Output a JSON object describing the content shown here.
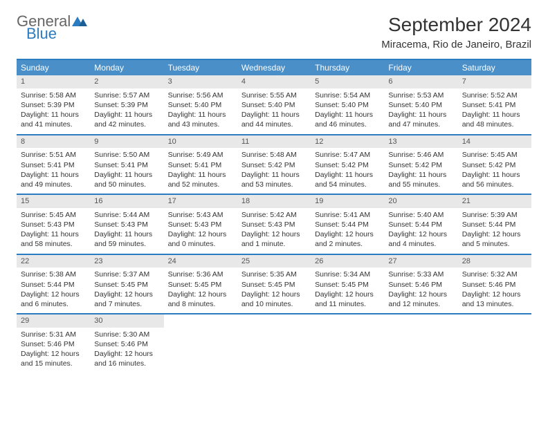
{
  "logo": {
    "general": "General",
    "blue": "Blue"
  },
  "title": "September 2024",
  "location": "Miracema, Rio de Janeiro, Brazil",
  "colors": {
    "header_bar": "#4a8fc8",
    "rule": "#2a7bbf",
    "daynum_bg": "#e8e8e8",
    "text": "#333333",
    "logo_gray": "#666666",
    "logo_blue": "#2a7bbf"
  },
  "dow": [
    "Sunday",
    "Monday",
    "Tuesday",
    "Wednesday",
    "Thursday",
    "Friday",
    "Saturday"
  ],
  "weeks": [
    [
      {
        "n": "1",
        "sr": "Sunrise: 5:58 AM",
        "ss": "Sunset: 5:39 PM",
        "d1": "Daylight: 11 hours",
        "d2": "and 41 minutes."
      },
      {
        "n": "2",
        "sr": "Sunrise: 5:57 AM",
        "ss": "Sunset: 5:39 PM",
        "d1": "Daylight: 11 hours",
        "d2": "and 42 minutes."
      },
      {
        "n": "3",
        "sr": "Sunrise: 5:56 AM",
        "ss": "Sunset: 5:40 PM",
        "d1": "Daylight: 11 hours",
        "d2": "and 43 minutes."
      },
      {
        "n": "4",
        "sr": "Sunrise: 5:55 AM",
        "ss": "Sunset: 5:40 PM",
        "d1": "Daylight: 11 hours",
        "d2": "and 44 minutes."
      },
      {
        "n": "5",
        "sr": "Sunrise: 5:54 AM",
        "ss": "Sunset: 5:40 PM",
        "d1": "Daylight: 11 hours",
        "d2": "and 46 minutes."
      },
      {
        "n": "6",
        "sr": "Sunrise: 5:53 AM",
        "ss": "Sunset: 5:40 PM",
        "d1": "Daylight: 11 hours",
        "d2": "and 47 minutes."
      },
      {
        "n": "7",
        "sr": "Sunrise: 5:52 AM",
        "ss": "Sunset: 5:41 PM",
        "d1": "Daylight: 11 hours",
        "d2": "and 48 minutes."
      }
    ],
    [
      {
        "n": "8",
        "sr": "Sunrise: 5:51 AM",
        "ss": "Sunset: 5:41 PM",
        "d1": "Daylight: 11 hours",
        "d2": "and 49 minutes."
      },
      {
        "n": "9",
        "sr": "Sunrise: 5:50 AM",
        "ss": "Sunset: 5:41 PM",
        "d1": "Daylight: 11 hours",
        "d2": "and 50 minutes."
      },
      {
        "n": "10",
        "sr": "Sunrise: 5:49 AM",
        "ss": "Sunset: 5:41 PM",
        "d1": "Daylight: 11 hours",
        "d2": "and 52 minutes."
      },
      {
        "n": "11",
        "sr": "Sunrise: 5:48 AM",
        "ss": "Sunset: 5:42 PM",
        "d1": "Daylight: 11 hours",
        "d2": "and 53 minutes."
      },
      {
        "n": "12",
        "sr": "Sunrise: 5:47 AM",
        "ss": "Sunset: 5:42 PM",
        "d1": "Daylight: 11 hours",
        "d2": "and 54 minutes."
      },
      {
        "n": "13",
        "sr": "Sunrise: 5:46 AM",
        "ss": "Sunset: 5:42 PM",
        "d1": "Daylight: 11 hours",
        "d2": "and 55 minutes."
      },
      {
        "n": "14",
        "sr": "Sunrise: 5:45 AM",
        "ss": "Sunset: 5:42 PM",
        "d1": "Daylight: 11 hours",
        "d2": "and 56 minutes."
      }
    ],
    [
      {
        "n": "15",
        "sr": "Sunrise: 5:45 AM",
        "ss": "Sunset: 5:43 PM",
        "d1": "Daylight: 11 hours",
        "d2": "and 58 minutes."
      },
      {
        "n": "16",
        "sr": "Sunrise: 5:44 AM",
        "ss": "Sunset: 5:43 PM",
        "d1": "Daylight: 11 hours",
        "d2": "and 59 minutes."
      },
      {
        "n": "17",
        "sr": "Sunrise: 5:43 AM",
        "ss": "Sunset: 5:43 PM",
        "d1": "Daylight: 12 hours",
        "d2": "and 0 minutes."
      },
      {
        "n": "18",
        "sr": "Sunrise: 5:42 AM",
        "ss": "Sunset: 5:43 PM",
        "d1": "Daylight: 12 hours",
        "d2": "and 1 minute."
      },
      {
        "n": "19",
        "sr": "Sunrise: 5:41 AM",
        "ss": "Sunset: 5:44 PM",
        "d1": "Daylight: 12 hours",
        "d2": "and 2 minutes."
      },
      {
        "n": "20",
        "sr": "Sunrise: 5:40 AM",
        "ss": "Sunset: 5:44 PM",
        "d1": "Daylight: 12 hours",
        "d2": "and 4 minutes."
      },
      {
        "n": "21",
        "sr": "Sunrise: 5:39 AM",
        "ss": "Sunset: 5:44 PM",
        "d1": "Daylight: 12 hours",
        "d2": "and 5 minutes."
      }
    ],
    [
      {
        "n": "22",
        "sr": "Sunrise: 5:38 AM",
        "ss": "Sunset: 5:44 PM",
        "d1": "Daylight: 12 hours",
        "d2": "and 6 minutes."
      },
      {
        "n": "23",
        "sr": "Sunrise: 5:37 AM",
        "ss": "Sunset: 5:45 PM",
        "d1": "Daylight: 12 hours",
        "d2": "and 7 minutes."
      },
      {
        "n": "24",
        "sr": "Sunrise: 5:36 AM",
        "ss": "Sunset: 5:45 PM",
        "d1": "Daylight: 12 hours",
        "d2": "and 8 minutes."
      },
      {
        "n": "25",
        "sr": "Sunrise: 5:35 AM",
        "ss": "Sunset: 5:45 PM",
        "d1": "Daylight: 12 hours",
        "d2": "and 10 minutes."
      },
      {
        "n": "26",
        "sr": "Sunrise: 5:34 AM",
        "ss": "Sunset: 5:45 PM",
        "d1": "Daylight: 12 hours",
        "d2": "and 11 minutes."
      },
      {
        "n": "27",
        "sr": "Sunrise: 5:33 AM",
        "ss": "Sunset: 5:46 PM",
        "d1": "Daylight: 12 hours",
        "d2": "and 12 minutes."
      },
      {
        "n": "28",
        "sr": "Sunrise: 5:32 AM",
        "ss": "Sunset: 5:46 PM",
        "d1": "Daylight: 12 hours",
        "d2": "and 13 minutes."
      }
    ],
    [
      {
        "n": "29",
        "sr": "Sunrise: 5:31 AM",
        "ss": "Sunset: 5:46 PM",
        "d1": "Daylight: 12 hours",
        "d2": "and 15 minutes."
      },
      {
        "n": "30",
        "sr": "Sunrise: 5:30 AM",
        "ss": "Sunset: 5:46 PM",
        "d1": "Daylight: 12 hours",
        "d2": "and 16 minutes."
      },
      {
        "empty": true
      },
      {
        "empty": true
      },
      {
        "empty": true
      },
      {
        "empty": true
      },
      {
        "empty": true
      }
    ]
  ]
}
